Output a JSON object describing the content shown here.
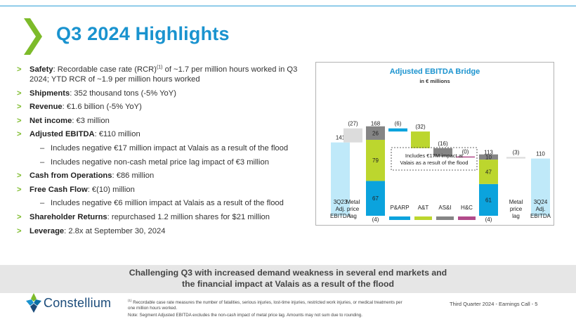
{
  "slide": {
    "title": "Q3 2024 Highlights",
    "bullets": [
      {
        "label": "Safety",
        "pre": ": Recordable case rate (RCR)",
        "sup": "(1)",
        "post": " of ~1.7 per million hours worked in Q3 2024; YTD RCR of ~1.9 per million hours worked"
      },
      {
        "label": "Shipments",
        "text": ": 352 thousand tons (-5% YoY)"
      },
      {
        "label": "Revenue",
        "text": ": €1.6 billion (-5% YoY)"
      },
      {
        "label": "Net income",
        "text": ": €3 million"
      },
      {
        "label": "Adjusted EBITDA",
        "text": ": €110 million"
      },
      {
        "label": "Cash from Operations",
        "text": ": €86 million"
      },
      {
        "label": "Free Cash Flow",
        "text": ": €(10) million"
      },
      {
        "label": "Shareholder Returns",
        "text": ": repurchased 1.2 million shares for $21 million"
      },
      {
        "label": "Leverage",
        "text": ": 2.8x at September 30, 2024"
      }
    ],
    "sub_bullets": {
      "ebitda_1": "Includes negative €17 million impact at Valais as a result of the flood",
      "ebitda_2": "Includes negative non-cash metal price lag impact of €3 million",
      "fcf_1": "Includes negative €6 million impact at Valais as a result of the flood"
    },
    "arrow_glyph": ">",
    "dash_glyph": "–",
    "banner_line1": "Challenging Q3 with increased demand weakness in several end markets and",
    "banner_line2": "the financial impact at Valais as a result of the flood",
    "brand_name": "Constellium",
    "footnote_sup": "(1)",
    "footnote_1": " Recordable case rate measures the number of fatalities, serious injuries, lost-time injuries, restricted work injuries, or medical treatments per one million hours worked.",
    "footnote_2": "Note: Segment Adjusted EBITDA excludes the non-cash impact of metal price lag. Amounts may not sum due to rounding.",
    "footer_right": "Third Quarter 2024 -  Earnings Call - 5"
  },
  "colors": {
    "accent_blue": "#1a93cf",
    "bullet_green": "#7dbb2a",
    "ebitda_light_blue": "#bfe9f9",
    "metal_lag_grey": "#dcdcdc",
    "parp_blue": "#0ba3dd",
    "ats_green": "#bcd62e",
    "asi_grey": "#858585",
    "hc_purple": "#b24a8a",
    "brand_navy": "#1b4b7a"
  },
  "chart_data": {
    "type": "bar",
    "title": "Adjusted EBITDA Bridge",
    "subtitle": "in € millions",
    "unit": "€ millions",
    "bars": [
      {
        "label_lines": [
          "3Q23",
          "Adj.",
          "EBITDA"
        ],
        "kind": "total",
        "value": 141,
        "label": "141"
      },
      {
        "label_lines": [
          "Metal",
          "price",
          "lag"
        ],
        "kind": "delta",
        "value": -27,
        "label": "(27)"
      },
      {
        "label_lines": [],
        "kind": "subtotal",
        "value": 168,
        "label": "168",
        "segments": [
          {
            "name": "P&ARP",
            "value": 67
          },
          {
            "name": "A&T",
            "value": 79
          },
          {
            "name": "AS&I",
            "value": 26
          },
          {
            "name": "H&C",
            "value": -4,
            "label": "(4)"
          }
        ]
      },
      {
        "label_lines": [],
        "kind": "delta",
        "series": "P&ARP",
        "value": -6,
        "label": "(6)"
      },
      {
        "label_lines": [],
        "kind": "delta",
        "series": "A&T",
        "value": -32,
        "label": "(32)"
      },
      {
        "label_lines": [],
        "kind": "delta",
        "series": "AS&I",
        "value": -16,
        "label": "(16)"
      },
      {
        "label_lines": [],
        "kind": "delta",
        "series": "H&C",
        "value": 0,
        "label": "(0)"
      },
      {
        "label_lines": [],
        "kind": "subtotal",
        "value": 113,
        "label": "113",
        "segments": [
          {
            "name": "P&ARP",
            "value": 61
          },
          {
            "name": "A&T",
            "value": 47
          },
          {
            "name": "AS&I",
            "value": 10
          },
          {
            "name": "H&C",
            "value": -4,
            "label": "(4)"
          }
        ]
      },
      {
        "label_lines": [
          "Metal",
          "price",
          "lag"
        ],
        "kind": "delta",
        "value": -3,
        "label": "(3)"
      },
      {
        "label_lines": [
          "3Q24",
          "Adj.",
          "EBITDA"
        ],
        "kind": "total",
        "value": 110,
        "label": "110"
      }
    ],
    "legend": [
      "P&ARP",
      "A&T",
      "AS&I",
      "H&C"
    ],
    "legend_placement": "bottom",
    "annotation": "Includes €17M impact at Valais as a result of the flood",
    "annotation_lines": [
      "Includes €17M impact at",
      "Valais as a result of the flood"
    ],
    "grid": false
  }
}
